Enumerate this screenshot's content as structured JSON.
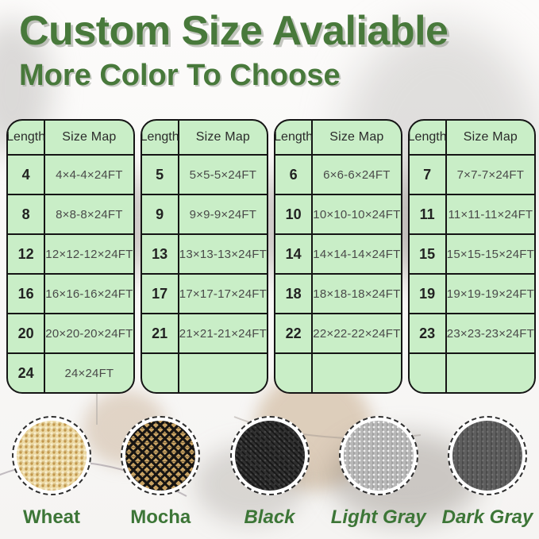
{
  "title": "Custom Size Avaliable",
  "subtitle": "More Color To Choose",
  "size_chart": {
    "tables": [
      {
        "headers": [
          "Length",
          "Size Map"
        ],
        "rows": [
          [
            "4",
            "4×4-4×24FT"
          ],
          [
            "8",
            "8×8-8×24FT"
          ],
          [
            "12",
            "12×12-12×24FT"
          ],
          [
            "16",
            "16×16-16×24FT"
          ],
          [
            "20",
            "20×20-20×24FT"
          ],
          [
            "24",
            "24×24FT"
          ]
        ]
      },
      {
        "headers": [
          "Length",
          "Size Map"
        ],
        "rows": [
          [
            "5",
            "5×5-5×24FT"
          ],
          [
            "9",
            "9×9-9×24FT"
          ],
          [
            "13",
            "13×13-13×24FT"
          ],
          [
            "17",
            "17×17-17×24FT"
          ],
          [
            "21",
            "21×21-21×24FT"
          ],
          [
            "",
            ""
          ]
        ]
      },
      {
        "headers": [
          "Length",
          "Size Map"
        ],
        "rows": [
          [
            "6",
            "6×6-6×24FT"
          ],
          [
            "10",
            "10×10-10×24FT"
          ],
          [
            "14",
            "14×14-14×24FT"
          ],
          [
            "18",
            "18×18-18×24FT"
          ],
          [
            "22",
            "22×22-22×24FT"
          ],
          [
            "",
            ""
          ]
        ]
      },
      {
        "headers": [
          "Length",
          "Size Map"
        ],
        "rows": [
          [
            "7",
            "7×7-7×24FT"
          ],
          [
            "11",
            "11×11-11×24FT"
          ],
          [
            "15",
            "15×15-15×24FT"
          ],
          [
            "19",
            "19×19-19×24FT"
          ],
          [
            "23",
            "23×23-23×24FT"
          ],
          [
            "",
            ""
          ]
        ]
      }
    ]
  },
  "colors": {
    "items": [
      {
        "label": "Wheat",
        "swatch_key": "wheat",
        "italic": false,
        "base_hex": "#ecd9a4"
      },
      {
        "label": "Mocha",
        "swatch_key": "mocha",
        "italic": false,
        "base_hex": "#c9a363"
      },
      {
        "label": "Black",
        "swatch_key": "black",
        "italic": true,
        "base_hex": "#2f2f2f"
      },
      {
        "label": "Light Gray",
        "swatch_key": "light-gray",
        "italic": true,
        "base_hex": "#b7b7b7"
      },
      {
        "label": "Dark Gray",
        "swatch_key": "dark-gray",
        "italic": true,
        "base_hex": "#5e5e5e"
      }
    ]
  },
  "palette": {
    "heading_green": "#48793b",
    "label_green": "#3d7637",
    "table_bg_green": "#c9eec7",
    "table_border": "#151515",
    "mocha_accent": "#171513"
  }
}
